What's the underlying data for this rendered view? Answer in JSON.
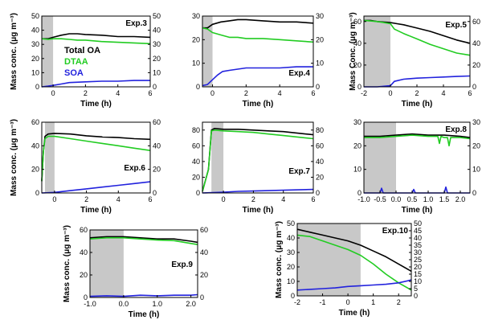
{
  "colors": {
    "total": "#000000",
    "dtaa": "#22cc22",
    "soa": "#2222dd",
    "shade": "#c8c8c8",
    "frame": "#000000"
  },
  "legend": [
    {
      "key": "total",
      "label": "Total OA"
    },
    {
      "key": "dtaa",
      "label": "DTAA"
    },
    {
      "key": "soa",
      "label": "SOA"
    }
  ],
  "chart_data": [
    {
      "type": "line",
      "title": "Exp.3",
      "xlabel": "Time (h)",
      "ylabel": "Mass conc. (μg m⁻³)",
      "xlim": [
        -0.7,
        6
      ],
      "ylim": [
        0,
        50
      ],
      "xticks": [
        0,
        2,
        4,
        6
      ],
      "yticks": [
        0,
        10,
        20,
        30,
        40,
        50
      ],
      "right_yticks": [
        0,
        10,
        20,
        30,
        40,
        50
      ],
      "shade": [
        -0.7,
        0
      ],
      "legend": true,
      "series": [
        {
          "key": "total",
          "x": [
            -0.7,
            -0.3,
            0,
            0.5,
            1,
            1.5,
            2,
            3,
            4,
            5,
            6
          ],
          "y": [
            34,
            34,
            35,
            36.5,
            37.5,
            37.5,
            37,
            36.5,
            35.5,
            35.5,
            35
          ]
        },
        {
          "key": "dtaa",
          "x": [
            -0.7,
            -0.3,
            0,
            0.5,
            1,
            1.5,
            2,
            3,
            4,
            5,
            6
          ],
          "y": [
            34,
            33.5,
            34,
            34,
            33.5,
            33,
            33,
            32,
            31.5,
            31,
            30.5
          ]
        },
        {
          "key": "soa",
          "x": [
            -0.7,
            -0.3,
            0,
            0.5,
            1,
            2,
            3,
            4,
            5,
            6
          ],
          "y": [
            0,
            0.5,
            1,
            2,
            3,
            3.5,
            4,
            4,
            4.5,
            4.5
          ]
        }
      ]
    },
    {
      "type": "line",
      "title": "Exp.4",
      "xlabel": "Time (h)",
      "ylabel": "",
      "xlim": [
        -0.6,
        6
      ],
      "ylim": [
        0,
        30
      ],
      "xticks": [
        0,
        2,
        4,
        6
      ],
      "yticks": [
        0,
        10,
        20,
        30
      ],
      "right_yticks": [
        0,
        10,
        20,
        30
      ],
      "shade": [
        -0.6,
        0
      ],
      "legend": false,
      "series": [
        {
          "key": "total",
          "x": [
            -0.6,
            -0.3,
            0,
            0.5,
            1,
            1.5,
            2,
            3,
            4,
            5,
            6
          ],
          "y": [
            25,
            25,
            26.5,
            27.5,
            28,
            28.5,
            28.5,
            28,
            27.5,
            27.5,
            27
          ]
        },
        {
          "key": "dtaa",
          "x": [
            -0.6,
            -0.3,
            0,
            0.5,
            1,
            1.5,
            2,
            3,
            4,
            5,
            6
          ],
          "y": [
            25,
            24.5,
            23,
            22,
            21,
            21,
            20.5,
            20.5,
            20,
            19.5,
            19
          ]
        },
        {
          "key": "soa",
          "x": [
            -0.6,
            -0.3,
            0,
            0.3,
            0.6,
            1,
            1.5,
            2,
            3,
            4,
            5,
            6
          ],
          "y": [
            0.5,
            1,
            3,
            5,
            6.5,
            7,
            7.5,
            8,
            8,
            8,
            8.5,
            8.5
          ]
        }
      ]
    },
    {
      "type": "line",
      "title": "Exp.5",
      "xlabel": "Time (h)",
      "ylabel": "Mass Conc. (μg m⁻³)",
      "xlim": [
        -2,
        6
      ],
      "ylim": [
        0,
        65
      ],
      "xticks": [
        -2,
        0,
        2,
        4,
        6
      ],
      "yticks": [
        0,
        20,
        40,
        60
      ],
      "right_yticks": [
        0,
        20,
        40,
        60
      ],
      "shade": [
        -2,
        0
      ],
      "legend": false,
      "series": [
        {
          "key": "total",
          "x": [
            -2,
            -1.5,
            -1,
            -0.5,
            0,
            0.5,
            1,
            2,
            3,
            4,
            5,
            6
          ],
          "y": [
            61,
            61,
            60,
            59.5,
            59,
            58,
            57,
            54,
            51,
            47,
            43,
            40
          ]
        },
        {
          "key": "dtaa",
          "x": [
            -2,
            -1.5,
            -1,
            -0.5,
            0,
            0.3,
            1,
            2,
            3,
            4,
            5,
            6
          ],
          "y": [
            61,
            60.5,
            60,
            59,
            58,
            53,
            49,
            44,
            39,
            35,
            31,
            29
          ]
        },
        {
          "key": "soa",
          "x": [
            -2,
            -1,
            0,
            0.3,
            1,
            2,
            3,
            4,
            5,
            6
          ],
          "y": [
            0,
            0,
            1,
            5,
            7,
            8,
            8.5,
            9,
            9.5,
            10
          ]
        }
      ]
    },
    {
      "type": "line",
      "title": "Exp.6",
      "xlabel": "Time (h)",
      "ylabel": "Mass conc. (μg m⁻³)",
      "xlim": [
        -0.8,
        6
      ],
      "ylim": [
        0,
        60
      ],
      "xticks": [
        0,
        2,
        4,
        6
      ],
      "yticks": [
        0,
        20,
        40,
        60
      ],
      "right_yticks": [
        0,
        20,
        40,
        60
      ],
      "shade": [
        -0.6,
        0
      ],
      "legend": false,
      "series": [
        {
          "key": "total",
          "x": [
            -0.8,
            -0.7,
            -0.6,
            -0.4,
            0,
            1,
            2,
            3,
            4,
            5,
            6
          ],
          "y": [
            10,
            35,
            48,
            50,
            50.5,
            50,
            48.5,
            47.5,
            47,
            46,
            45.5
          ]
        },
        {
          "key": "dtaa",
          "x": [
            -0.8,
            -0.7,
            -0.6,
            -0.4,
            0,
            1,
            2,
            3,
            4,
            5,
            6
          ],
          "y": [
            10,
            35,
            46,
            48,
            48,
            46,
            44,
            42,
            40,
            38,
            36
          ]
        },
        {
          "key": "soa",
          "x": [
            -0.8,
            0,
            1,
            2,
            3,
            4,
            5,
            6
          ],
          "y": [
            0,
            0.5,
            2,
            3.5,
            5,
            6.5,
            8,
            9.5
          ]
        }
      ]
    },
    {
      "type": "line",
      "title": "Exp.7",
      "xlabel": "Time (h)",
      "ylabel": "",
      "xlim": [
        -1.4,
        6
      ],
      "ylim": [
        0,
        90
      ],
      "xticks": [
        0,
        2,
        4,
        6
      ],
      "yticks": [
        0,
        20,
        40,
        60,
        80
      ],
      "right_yticks": [
        0,
        20,
        40,
        60,
        80
      ],
      "shade": [
        -0.8,
        0
      ],
      "legend": false,
      "series": [
        {
          "key": "total",
          "x": [
            -1.4,
            -1,
            -0.8,
            -0.6,
            0,
            1,
            2,
            3,
            4,
            5,
            6
          ],
          "y": [
            2,
            30,
            80,
            82,
            81,
            81,
            80,
            79,
            78,
            76,
            74
          ]
        },
        {
          "key": "dtaa",
          "x": [
            -1.4,
            -1,
            -0.8,
            -0.6,
            0,
            1,
            2,
            3,
            4,
            5,
            6
          ],
          "y": [
            2,
            30,
            79,
            80,
            79,
            78,
            77,
            75,
            73,
            71,
            69
          ]
        },
        {
          "key": "soa",
          "x": [
            -1.4,
            0,
            1,
            2,
            3,
            4,
            5,
            6
          ],
          "y": [
            0,
            1,
            2,
            2.5,
            3,
            3.5,
            4,
            4.5
          ]
        }
      ]
    },
    {
      "type": "line",
      "title": "Exp.8",
      "xlabel": "Time (h)",
      "ylabel": "",
      "xlim": [
        -1,
        2.3
      ],
      "ylim": [
        0,
        30
      ],
      "xticks": [
        -1,
        -0.5,
        0,
        0.5,
        1,
        1.5,
        2
      ],
      "xticklabels": [
        "-1.0",
        "-0.5",
        "0.0",
        "0.5",
        "1.0",
        "1.5",
        "2.0"
      ],
      "yticks": [
        0,
        10,
        20,
        30
      ],
      "right_yticks": [
        0,
        10,
        20,
        30
      ],
      "right_ticklabels": [
        "0",
        "10",
        "20",
        "30"
      ],
      "shade": [
        -1,
        0
      ],
      "legend": false,
      "series": [
        {
          "key": "total",
          "x": [
            -1,
            -0.5,
            0,
            0.5,
            1,
            1.5,
            2,
            2.3
          ],
          "y": [
            24,
            24,
            24.5,
            25,
            24.5,
            24.5,
            24,
            23.5
          ]
        },
        {
          "key": "dtaa",
          "x": [
            -1,
            -0.5,
            0,
            0.5,
            1,
            1.3,
            1.35,
            1.4,
            1.5,
            1.6,
            1.65,
            1.7,
            2,
            2.3
          ],
          "y": [
            23.5,
            23.5,
            24,
            24.5,
            24,
            24,
            21,
            24,
            23.5,
            23.5,
            20,
            23.5,
            23.5,
            23
          ]
        },
        {
          "key": "soa",
          "x": [
            -1,
            -0.5,
            -0.45,
            -0.4,
            0,
            0.5,
            0.55,
            0.6,
            1,
            1.5,
            1.55,
            1.6,
            2,
            2.3
          ],
          "y": [
            0,
            0,
            2,
            0,
            0,
            0,
            1.5,
            0,
            0,
            0,
            2.5,
            0,
            0,
            0
          ]
        }
      ]
    },
    {
      "type": "line",
      "title": "Exp.9",
      "xlabel": "Time (h)",
      "ylabel": "Mass conc. (μg m⁻³)",
      "xlim": [
        -1,
        2.2
      ],
      "ylim": [
        0,
        60
      ],
      "xticks": [
        -1,
        0,
        1,
        2
      ],
      "xticklabels": [
        "-1.0",
        "0.0",
        "1.0",
        "2.0"
      ],
      "yticks": [
        0,
        20,
        40,
        60
      ],
      "right_yticks": [
        0,
        20,
        40,
        60
      ],
      "shade": [
        -1,
        0
      ],
      "legend": false,
      "series": [
        {
          "key": "total",
          "x": [
            -1,
            -0.5,
            0,
            0.5,
            1,
            1.5,
            2,
            2.2
          ],
          "y": [
            53,
            54,
            54,
            53,
            52,
            52,
            50,
            49
          ]
        },
        {
          "key": "dtaa",
          "x": [
            -1,
            -0.5,
            0,
            0.5,
            1,
            1.5,
            2,
            2.2
          ],
          "y": [
            52,
            53,
            53,
            52,
            51,
            50.5,
            48,
            47
          ]
        },
        {
          "key": "soa",
          "x": [
            -1,
            -0.5,
            0,
            0.5,
            1,
            1.5,
            2,
            2.2
          ],
          "y": [
            1,
            1.5,
            1,
            2,
            1.5,
            2,
            2,
            2.5
          ]
        }
      ]
    },
    {
      "type": "line",
      "title": "Exp.10",
      "xlabel": "Time (h)",
      "ylabel": "Mass conc. (μg m⁻³)",
      "xlim": [
        -2,
        2.5
      ],
      "ylim": [
        0,
        50
      ],
      "xticks": [
        -2,
        -1,
        0,
        1,
        2
      ],
      "yticks": [
        0,
        10,
        20,
        30,
        40,
        50
      ],
      "right_yticks": [
        0,
        5,
        10,
        15,
        20,
        25,
        30,
        35,
        40,
        45,
        50
      ],
      "shade": [
        -2,
        0.5
      ],
      "legend": false,
      "series": [
        {
          "key": "total",
          "x": [
            -2,
            -1.5,
            -1,
            -0.5,
            0,
            0.5,
            1,
            1.5,
            2,
            2.5
          ],
          "y": [
            46,
            44,
            42,
            40,
            38,
            35,
            31,
            27,
            22,
            17
          ]
        },
        {
          "key": "dtaa",
          "x": [
            -2,
            -1.5,
            -1,
            -0.5,
            0,
            0.5,
            1,
            1.5,
            2,
            2.5
          ],
          "y": [
            42,
            41,
            38,
            35,
            32,
            28,
            22,
            15,
            9,
            4
          ]
        },
        {
          "key": "soa",
          "x": [
            -2,
            -1.5,
            -1,
            -0.5,
            0,
            0.5,
            1,
            1.5,
            2,
            2.5
          ],
          "y": [
            4,
            4.5,
            5,
            5.5,
            6.5,
            7,
            7.5,
            8,
            9,
            11
          ]
        }
      ]
    }
  ]
}
